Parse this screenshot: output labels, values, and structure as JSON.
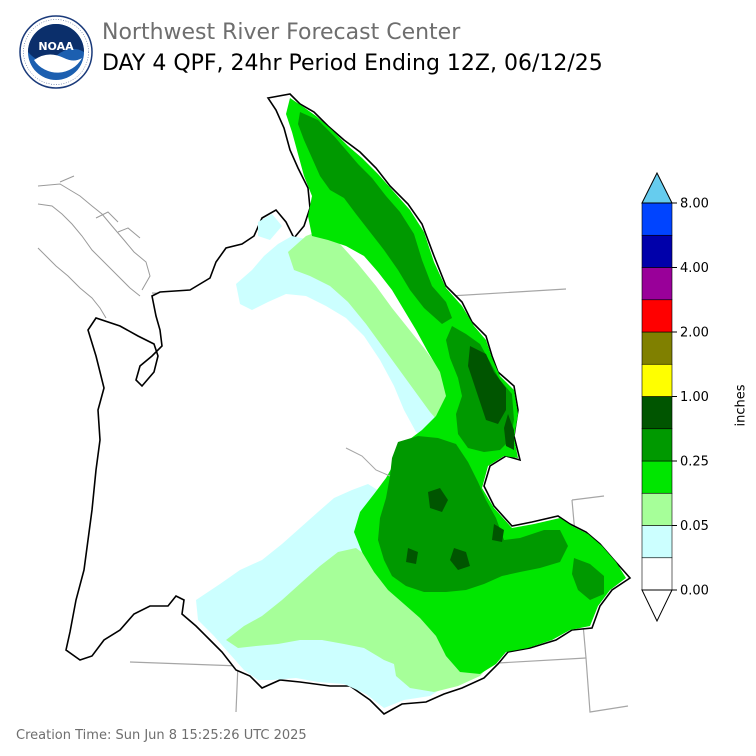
{
  "header": {
    "org": "Northwest River Forecast Center",
    "product": "DAY 4 QPF, 24hr Period Ending 12Z, 06/12/25"
  },
  "logo": {
    "text": "NOAA",
    "ring_text": "NATIONAL OCEANIC AND ATMOSPHERIC ADMINISTRATION · U.S. DEPARTMENT OF COMMERCE"
  },
  "legend": {
    "unit": "inches",
    "ticks": [
      "8.00",
      "4.00",
      "2.00",
      "1.00",
      "0.25",
      "0.05",
      "0.00"
    ],
    "bins": [
      "#ffffff",
      "#ccffff",
      "#a6ff99",
      "#00e600",
      "#009900",
      "#005500",
      "#ffff00",
      "#808000",
      "#ff0000",
      "#990099",
      "#0000aa",
      "#0044ff",
      "#66ccee"
    ]
  },
  "footer": {
    "creation_time": "Creation Time: Sun Jun 8 15:25:26 UTC 2025"
  },
  "colors": {
    "none": "#ffffff",
    "trace": "#ccffff",
    "light": "#a6ff99",
    "moderate": "#00e600",
    "heavy": "#009900",
    "very_heavy": "#005500"
  }
}
